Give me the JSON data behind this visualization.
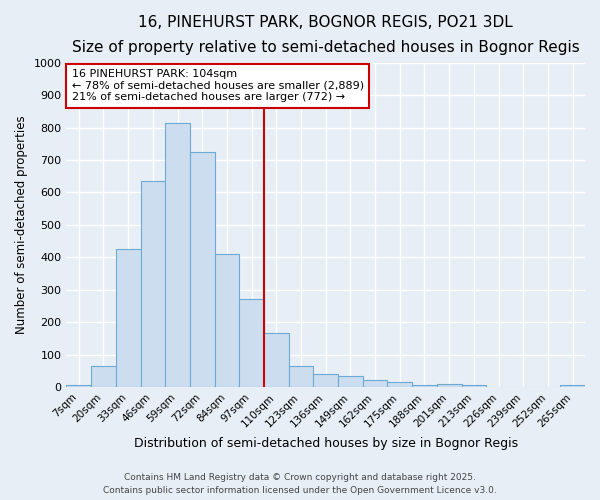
{
  "title1": "16, PINEHURST PARK, BOGNOR REGIS, PO21 3DL",
  "title2": "Size of property relative to semi-detached houses in Bognor Regis",
  "xlabel": "Distribution of semi-detached houses by size in Bognor Regis",
  "ylabel": "Number of semi-detached properties",
  "bin_labels": [
    "7sqm",
    "20sqm",
    "33sqm",
    "46sqm",
    "59sqm",
    "72sqm",
    "84sqm",
    "97sqm",
    "110sqm",
    "123sqm",
    "136sqm",
    "149sqm",
    "162sqm",
    "175sqm",
    "188sqm",
    "201sqm",
    "213sqm",
    "226sqm",
    "239sqm",
    "252sqm",
    "265sqm"
  ],
  "bar_heights": [
    7,
    65,
    425,
    635,
    815,
    725,
    410,
    270,
    165,
    65,
    40,
    35,
    20,
    15,
    5,
    10,
    5,
    0,
    0,
    0,
    5
  ],
  "bar_color": "#ccddf0",
  "bar_edge_color": "#6aaad4",
  "vline_x": 7.5,
  "vline_color": "#cc0000",
  "annotation_text": "16 PINEHURST PARK: 104sqm\n← 78% of semi-detached houses are smaller (2,889)\n21% of semi-detached houses are larger (772) →",
  "annotation_box_color": "#ffffff",
  "annotation_box_edge": "#cc0000",
  "annotation_fontsize": 8,
  "footer": "Contains HM Land Registry data © Crown copyright and database right 2025.\nContains public sector information licensed under the Open Government Licence v3.0.",
  "ylim": [
    0,
    1000
  ],
  "yticks": [
    0,
    100,
    200,
    300,
    400,
    500,
    600,
    700,
    800,
    900,
    1000
  ],
  "background_color": "#e8eef5",
  "grid_color": "#ffffff",
  "title1_fontsize": 11,
  "title2_fontsize": 9.5
}
